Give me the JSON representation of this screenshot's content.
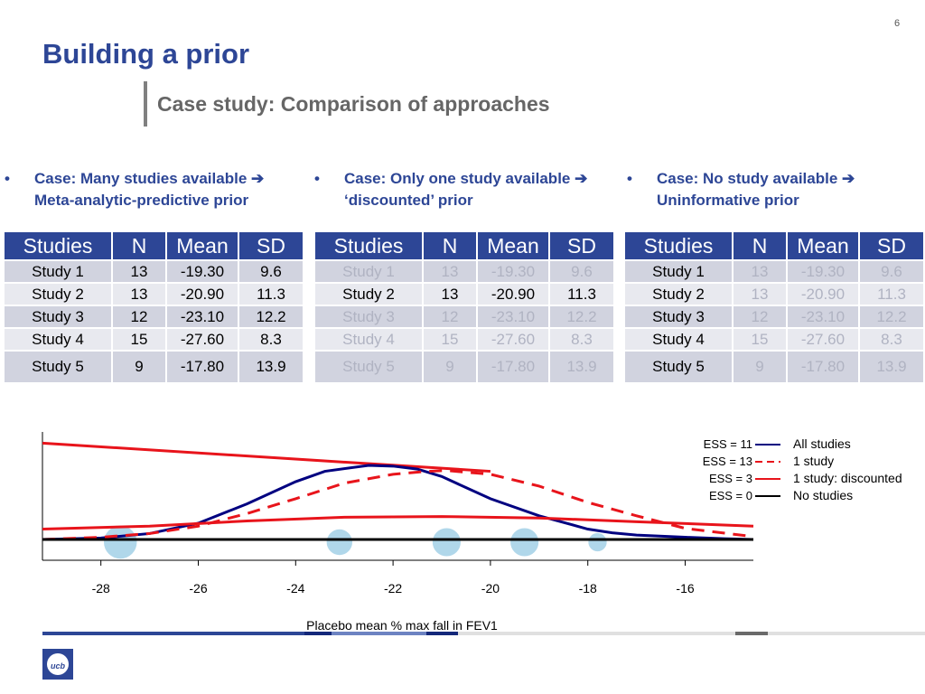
{
  "page_number": "6",
  "title": "Building a prior",
  "subtitle": "Case study: Comparison of approaches",
  "cases": [
    {
      "bullet": "•",
      "text": "Case: Many studies available ➔ Meta-analytic-predictive prior"
    },
    {
      "bullet": "•",
      "text": "Case: Only one study available ➔ ‘discounted’ prior"
    },
    {
      "bullet": "•",
      "text": "Case: No study available ➔ Uninformative prior"
    }
  ],
  "table_headers": [
    "Studies",
    "N",
    "Mean",
    "SD"
  ],
  "table_rows": [
    [
      "Study 1",
      "13",
      "-19.30",
      "9.6"
    ],
    [
      "Study 2",
      "13",
      "-20.90",
      "11.3"
    ],
    [
      "Study 3",
      "12",
      "-23.10",
      "12.2"
    ],
    [
      "Study 4",
      "15",
      "-27.60",
      "8.3"
    ],
    [
      "Study 5",
      "9",
      "-17.80",
      "13.9"
    ]
  ],
  "chart_data": {
    "type": "line",
    "xlabel": "Placebo mean % max fall in FEV1",
    "xlim": [
      -29.2,
      -14.6
    ],
    "xticks": [
      -28,
      -26,
      -24,
      -22,
      -20,
      -18,
      -16
    ],
    "series": [
      {
        "name": "All studies",
        "ess": "ESS = 11",
        "color": "#000080",
        "style": "solid",
        "points": [
          [
            -29.2,
            0.0
          ],
          [
            -28,
            0.02
          ],
          [
            -27,
            0.08
          ],
          [
            -26,
            0.22
          ],
          [
            -25,
            0.48
          ],
          [
            -24,
            0.78
          ],
          [
            -23.4,
            0.92
          ],
          [
            -22.5,
            1.0
          ],
          [
            -22,
            0.99
          ],
          [
            -21.5,
            0.95
          ],
          [
            -21,
            0.85
          ],
          [
            -20.5,
            0.7
          ],
          [
            -20,
            0.55
          ],
          [
            -19,
            0.32
          ],
          [
            -18,
            0.14
          ],
          [
            -17.5,
            0.09
          ],
          [
            -17,
            0.06
          ],
          [
            -16,
            0.03
          ],
          [
            -15.2,
            0.01
          ],
          [
            -14.6,
            0.0
          ]
        ]
      },
      {
        "name": "1 study",
        "ess": "ESS = 13",
        "color": "#e8141b",
        "style": "dashed",
        "points": [
          [
            -29.2,
            0.0
          ],
          [
            -28,
            0.03
          ],
          [
            -27,
            0.08
          ],
          [
            -26,
            0.18
          ],
          [
            -25,
            0.35
          ],
          [
            -24,
            0.55
          ],
          [
            -23,
            0.76
          ],
          [
            -22,
            0.88
          ],
          [
            -21.3,
            0.92
          ],
          [
            -20.9,
            0.93
          ],
          [
            -20,
            0.88
          ],
          [
            -19,
            0.72
          ],
          [
            -18,
            0.5
          ],
          [
            -17,
            0.32
          ],
          [
            -16,
            0.15
          ],
          [
            -15,
            0.07
          ],
          [
            -14.6,
            0.04
          ]
        ]
      },
      {
        "name": "1 study: discounted",
        "ess": "ESS = 3",
        "color": "#e8141b",
        "style": "solid",
        "points": [
          [
            -29.2,
            0.14
          ],
          [
            -27,
            0.18
          ],
          [
            -25,
            0.25
          ],
          [
            -23,
            0.3
          ],
          [
            -21,
            0.31
          ],
          [
            -19,
            0.29
          ],
          [
            -17,
            0.24
          ],
          [
            -14.6,
            0.18
          ]
        ]
      },
      {
        "name": "No studies",
        "ess": "ESS = 0",
        "color": "#000000",
        "style": "solid",
        "points": [
          [
            -29.2,
            0.0
          ],
          [
            -14.6,
            0.0
          ]
        ]
      }
    ],
    "discount_segment": {
      "color": "#e8141b",
      "points": [
        [
          -29.2,
          1.3
        ],
        [
          -20,
          0.92
        ]
      ]
    },
    "bubbles": [
      {
        "mean": -27.6,
        "n": 15
      },
      {
        "mean": -23.1,
        "n": 12
      },
      {
        "mean": -20.9,
        "n": 13
      },
      {
        "mean": -19.3,
        "n": 13
      },
      {
        "mean": -17.8,
        "n": 9
      }
    ],
    "bubble_color": "#a7d3e8"
  }
}
